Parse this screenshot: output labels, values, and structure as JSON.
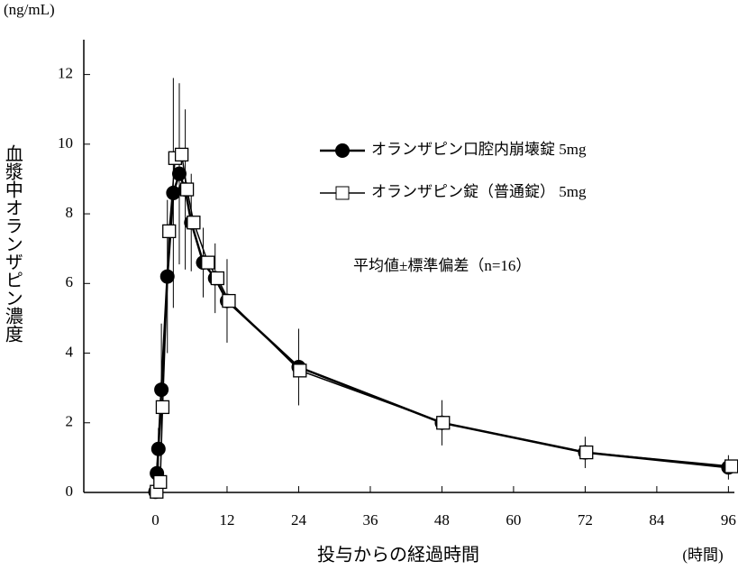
{
  "chart_data": {
    "type": "line",
    "y_unit": "(ng/mL)",
    "x_label": "投与からの経過時間",
    "x_unit": "(時間)",
    "y_label": "血漿中オランザピン濃度",
    "annotation": "平均値±標準偏差（n=16）",
    "xlim": [
      -12,
      97
    ],
    "ylim": [
      0,
      13
    ],
    "xticks": [
      0,
      12,
      24,
      36,
      48,
      60,
      72,
      84,
      96
    ],
    "yticks": [
      0,
      2,
      4,
      6,
      8,
      10,
      12
    ],
    "series": [
      {
        "name": "オランザピン口腔内崩壊錠 5mg",
        "color": "#000000",
        "marker": "circle",
        "x": [
          0,
          0.25,
          0.5,
          1,
          2,
          3,
          4,
          5,
          6,
          8,
          10,
          12,
          24,
          48,
          72,
          96
        ],
        "values": [
          0.02,
          0.55,
          1.25,
          2.95,
          6.2,
          8.6,
          9.15,
          8.7,
          7.75,
          6.6,
          6.15,
          5.5,
          3.6,
          2.0,
          1.15,
          0.72
        ],
        "error": [
          0,
          0.3,
          0.6,
          1.9,
          2.2,
          3.3,
          2.6,
          2.3,
          1.4,
          1.0,
          1.0,
          1.2,
          1.1,
          0.65,
          0.45,
          0.35
        ]
      },
      {
        "name": "オランザピン錠（普通錠） 5mg",
        "color": "#000000",
        "marker": "square",
        "x": [
          0.2,
          0.8,
          1.2,
          2.3,
          3.3,
          4.4,
          5.3,
          6.4,
          8.8,
          10.4,
          12.3,
          24.2,
          48.2,
          72.2,
          96.5
        ],
        "values": [
          0.02,
          0.3,
          2.45,
          7.5,
          9.6,
          9.7,
          8.7,
          7.75,
          6.6,
          6.15,
          5.5,
          3.5,
          2.0,
          1.15,
          0.75
        ]
      }
    ]
  }
}
